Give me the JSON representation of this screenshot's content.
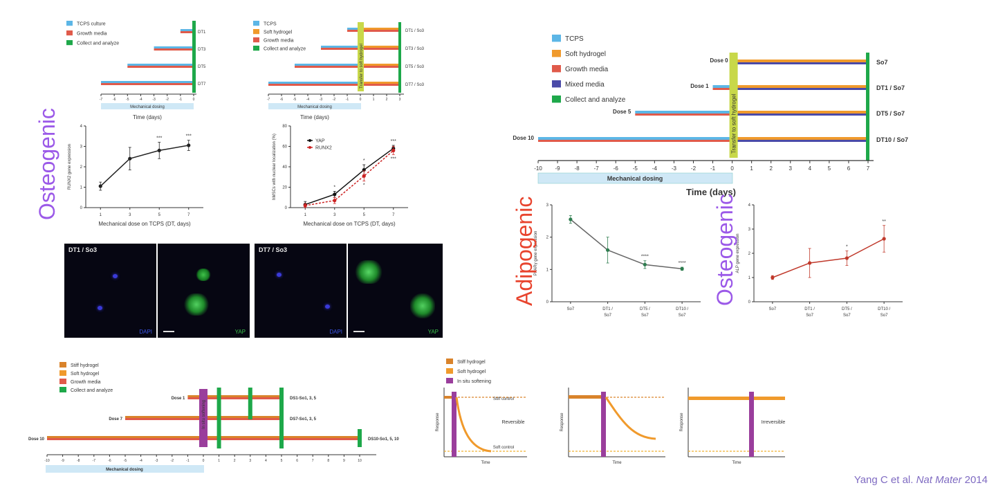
{
  "colors": {
    "tcps": "#5cb6e6",
    "soft": "#f09a2c",
    "stiff": "#d9832b",
    "growth": "#e05a4a",
    "mixed": "#4a4aa8",
    "collect": "#1ea84a",
    "transfer": "#c8d84a",
    "softening": "#9a3e9c",
    "dosing": "#cfe8f6",
    "osteo": "#9b59e8",
    "adipo": "#e8442e",
    "series": "#2e7d4f",
    "runx": "#cc2222",
    "yap": "#111111"
  },
  "panelA": {
    "legend": [
      "TCPS culture",
      "Growth media",
      "Collect and analyze"
    ],
    "rows": [
      "DT1",
      "DT3",
      "DT5",
      "DT7"
    ],
    "ticks": [
      "-7",
      "-6",
      "-5",
      "-4",
      "-3",
      "-2",
      "-1",
      "0"
    ],
    "dosing_label": "Mechanical dosing",
    "time_label": "Time (days)"
  },
  "panelB": {
    "legend": [
      "TCPS",
      "Soft hydrogel",
      "Growth media",
      "Collect and analyze"
    ],
    "rows": [
      "DT1 / So3",
      "DT3 / So3",
      "DT5 / So3",
      "DT7 / So3"
    ],
    "transfer_label": "Transfer to soft hydrogel",
    "ticks": [
      "-7",
      "-6",
      "-5",
      "-4",
      "-3",
      "-2",
      "-1",
      "0",
      "1",
      "2",
      "3"
    ],
    "dosing_label": "Mechanical dosing",
    "time_label": "Time (days)"
  },
  "osteo_word": "Osteogenic",
  "chart_data": [
    {
      "type": "line",
      "ylabel": "RUNX2 gene expression",
      "xlabel": "Mechanical dose on TCPS (DT, days)",
      "x": [
        1,
        3,
        5,
        7
      ],
      "ylim": [
        0,
        4
      ],
      "yticks": [
        "0",
        "1",
        "2",
        "3",
        "4"
      ],
      "xticks": [
        "1",
        "3",
        "5",
        "7"
      ],
      "series": [
        {
          "values": [
            1.05,
            2.4,
            2.8,
            3.05
          ],
          "err": [
            0.2,
            0.55,
            0.4,
            0.25
          ]
        }
      ],
      "annotations": [
        "",
        "",
        "***",
        "***"
      ]
    },
    {
      "type": "line",
      "ylabel": "hMSCs with nuclear localization (%)",
      "xlabel": "Mechanical dose on TCPS (DT, days)",
      "x": [
        1,
        3,
        5,
        7
      ],
      "ylim": [
        0,
        80
      ],
      "yticks": [
        "0",
        "20",
        "40",
        "60",
        "80"
      ],
      "xticks": [
        "1",
        "3",
        "5",
        "7"
      ],
      "series": [
        {
          "name": "YAP",
          "values": [
            3,
            13,
            37,
            58
          ],
          "err": [
            3,
            3,
            5,
            3
          ]
        },
        {
          "name": "RUNX2",
          "values": [
            2,
            7,
            31,
            56
          ],
          "err": [
            2,
            3,
            5,
            4
          ]
        }
      ],
      "annotations": [
        "",
        "*",
        "*",
        "***"
      ],
      "red_annotations": [
        "",
        "",
        "*",
        "***"
      ]
    },
    {
      "type": "line",
      "ylabel": "PPARγ gene expression",
      "xlabel": "",
      "categories": [
        "So7",
        "DT1 / So7",
        "DT5 / So7",
        "DT10 / So7"
      ],
      "ylim": [
        0,
        3
      ],
      "yticks": [
        "0",
        "1",
        "2",
        "3"
      ],
      "series": [
        {
          "values": [
            2.55,
            1.6,
            1.15,
            1.02
          ],
          "err": [
            0.12,
            0.4,
            0.12,
            0.05
          ]
        }
      ],
      "annotations": [
        "",
        "",
        "****",
        "****"
      ]
    },
    {
      "type": "line",
      "ylabel": "ALP gene expression",
      "xlabel": "",
      "categories": [
        "So7",
        "DT1 / So7",
        "DT5 / So7",
        "DT10 / So7"
      ],
      "ylim": [
        0,
        4
      ],
      "yticks": [
        "0",
        "1",
        "2",
        "3",
        "4"
      ],
      "series": [
        {
          "values": [
            1.0,
            1.6,
            1.8,
            2.6
          ],
          "err": [
            0.08,
            0.6,
            0.3,
            0.55
          ]
        }
      ],
      "annotations": [
        "",
        "",
        "*",
        "**"
      ]
    }
  ],
  "micro": [
    {
      "label": "DT1 / So3",
      "left": "DAPI",
      "right": "YAP"
    },
    {
      "label": "DT7 / So3",
      "left": "DAPI",
      "right": "YAP"
    }
  ],
  "panelC": {
    "legend": [
      "TCPS",
      "Soft hydrogel",
      "Growth media",
      "Mixed media",
      "Collect and analyze"
    ],
    "doses": [
      "Dose 0",
      "Dose 1",
      "Dose 5",
      "Dose 10"
    ],
    "rows": [
      "So7",
      "DT1 / So7",
      "DT5 / So7",
      "DT10 / So7"
    ],
    "transfer_label": "Transfer to soft hydrogel",
    "ticks": [
      "-10",
      "-9",
      "-8",
      "-7",
      "-6",
      "-5",
      "-4",
      "-3",
      "-2",
      "-1",
      "0",
      "1",
      "2",
      "3",
      "4",
      "5",
      "6",
      "7"
    ],
    "dosing_label": "Mechanical dosing",
    "time_label": "Time (days)"
  },
  "adipo_word": "Adipogenic",
  "osteo_word2": "Osteogenic",
  "panelD": {
    "legend": [
      "Stiff hydrogel",
      "Soft hydrogel",
      "Growth media",
      "Collect and analyze"
    ],
    "doses": [
      "Dose 1",
      "Dose 7",
      "Dose 10"
    ],
    "rows": [
      "DS1-So1, 3, 5",
      "DS7-So1, 3, 5",
      "DS10-So1, 5, 10"
    ],
    "softening_label": "In situ softening",
    "ticks": [
      "-10",
      "-9",
      "-8",
      "-7",
      "-6",
      "-5",
      "-4",
      "-3",
      "-2",
      "-1",
      "0",
      "1",
      "2",
      "3",
      "4",
      "5",
      "6",
      "7",
      "8",
      "9",
      "10"
    ],
    "dosing_label": "Mechanical dosing"
  },
  "panelE": {
    "legend": [
      "Stiff hydrogel",
      "Soft hydrogel",
      "In situ softening"
    ],
    "ylabel": "Response",
    "xlabel": "Time",
    "stiff_level": "Stiff control",
    "soft_level": "Soft control",
    "reversible": "Reversible",
    "irreversible": "Irreversible"
  },
  "citation": {
    "pre": "Yang C et al. ",
    "journal": "Nat Mater",
    "year": " 2014"
  }
}
